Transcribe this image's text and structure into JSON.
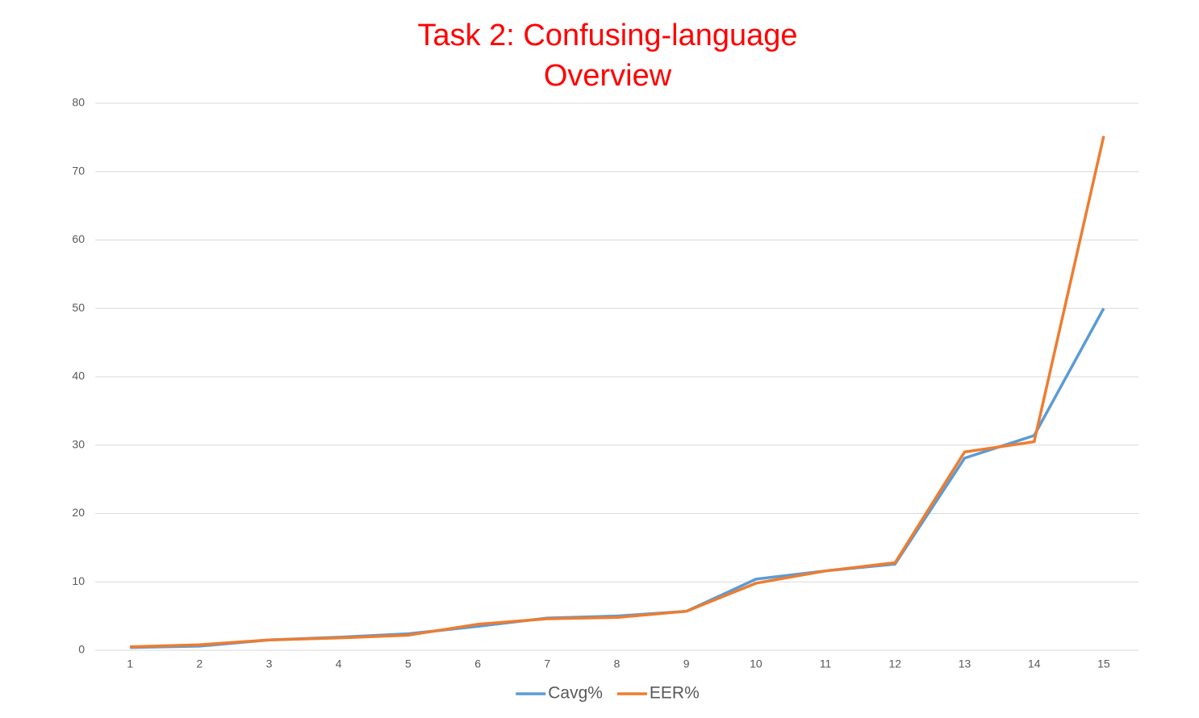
{
  "chart_data": {
    "type": "line",
    "title": [
      "Task 2: Confusing-language",
      "Overview"
    ],
    "categories": [
      "1",
      "2",
      "3",
      "4",
      "5",
      "6",
      "7",
      "8",
      "9",
      "10",
      "11",
      "12",
      "13",
      "14",
      "15"
    ],
    "series": [
      {
        "name": "Cavg%",
        "color": "#5b9bd5",
        "values": [
          0.4,
          0.6,
          1.5,
          1.9,
          2.4,
          3.5,
          4.7,
          5.0,
          5.7,
          10.4,
          11.6,
          12.6,
          28.1,
          31.4,
          50.0
        ]
      },
      {
        "name": "EER%",
        "color": "#ed7d31",
        "values": [
          0.5,
          0.8,
          1.5,
          1.8,
          2.2,
          3.8,
          4.6,
          4.8,
          5.7,
          9.8,
          11.6,
          12.8,
          29.0,
          30.5,
          75.2
        ]
      }
    ],
    "ylim": [
      0,
      80
    ],
    "yticks": [
      0,
      10,
      20,
      30,
      40,
      50,
      60,
      70,
      80
    ],
    "grid": true,
    "legend": "bottom"
  }
}
